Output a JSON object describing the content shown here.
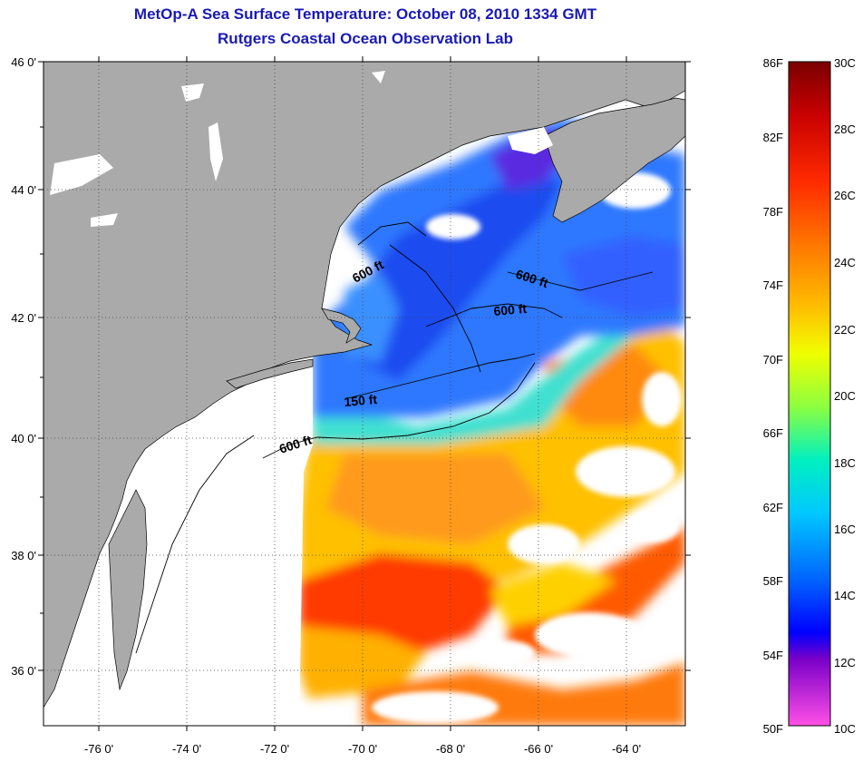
{
  "title": {
    "line1": "MetOp-A Sea Surface Temperature:  October 08, 2010 1334 GMT",
    "line2": "Rutgers Coastal Ocean Observation Lab"
  },
  "axes": {
    "lat_labels": [
      "46 0'",
      "44 0'",
      "42 0'",
      "40 0'",
      "38 0'",
      "36 0'"
    ],
    "lon_labels": [
      "-76 0'",
      "-74 0'",
      "-72 0'",
      "-70 0'",
      "-68 0'",
      "-66 0'",
      "-64 0'"
    ]
  },
  "contours": {
    "labels": [
      "600 ft",
      "600 ft",
      "600 ft",
      "150 ft",
      "600 ft"
    ]
  },
  "colorbar": {
    "fahrenheit": [
      "86F",
      "82F",
      "78F",
      "74F",
      "70F",
      "66F",
      "62F",
      "58F",
      "54F",
      "50F"
    ],
    "celsius": [
      "30C",
      "28C",
      "26C",
      "24C",
      "22C",
      "20C",
      "18C",
      "16C",
      "14C",
      "12C",
      "10C"
    ],
    "colors": [
      "#7a0000",
      "#c80000",
      "#ff2a00",
      "#ff7a00",
      "#ffbe00",
      "#f0ff00",
      "#8cff40",
      "#00f0c0",
      "#00c8ff",
      "#0064ff",
      "#0000ff",
      "#7a00c8",
      "#ff50e6"
    ]
  },
  "map_colors": {
    "land": "#aaaaaa",
    "water_nodata": "#ffffff",
    "cold_water": "#2850ff",
    "mid_water": "#3cb4ff",
    "warm_water": "#ffc800",
    "hot_water": "#ff5000"
  }
}
